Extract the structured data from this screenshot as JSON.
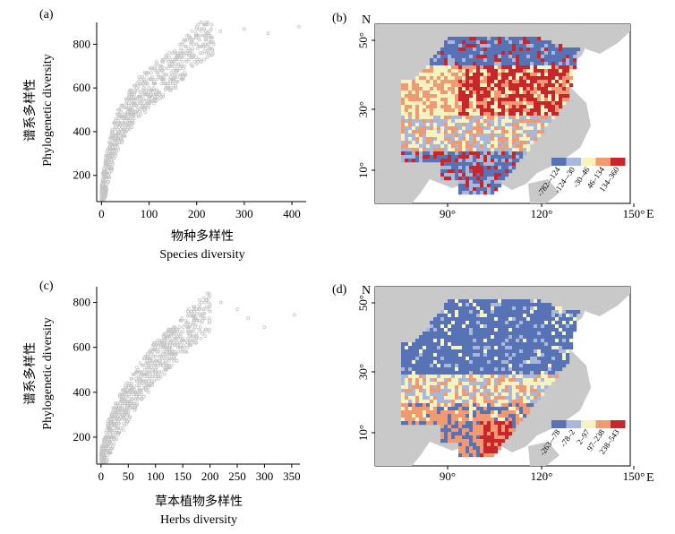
{
  "panels": {
    "a": {
      "label": "(a)",
      "ylabel_cn": "谱系多样性",
      "ylabel_en": "Phylogenetic diversity",
      "xlabel_cn": "物种多样性",
      "xlabel_en": "Species diversity"
    },
    "b": {
      "label": "(b)",
      "north": "N",
      "east": "E",
      "lat_ticks": [
        "50°",
        "30°",
        "10°"
      ],
      "lon_ticks": [
        "90°",
        "120°",
        "150°"
      ],
      "legend": [
        "-782–-124",
        "-124–-30",
        "-30–46",
        "46–134",
        "134–360"
      ],
      "legend_colors": [
        "#5873b5",
        "#a9b7d8",
        "#f6f3c0",
        "#f19a72",
        "#c8262a"
      ]
    },
    "c": {
      "label": "(c)",
      "ylabel_cn": "谱系多样性",
      "ylabel_en": "Phylogenetic diversity",
      "xlabel_cn": "草本植物多样性",
      "xlabel_en": "Herbs diversity"
    },
    "d": {
      "label": "(d)",
      "north": "N",
      "east": "E",
      "lat_ticks": [
        "50°",
        "30°",
        "10°"
      ],
      "lon_ticks": [
        "90°",
        "120°",
        "150°"
      ],
      "legend": [
        "-263–-78",
        "-78–2",
        "2–97",
        "97–238",
        "238–543"
      ],
      "legend_colors": [
        "#5873b5",
        "#a9b7d8",
        "#f6f3c0",
        "#f19a72",
        "#c8262a"
      ]
    }
  },
  "chart_data": [
    {
      "type": "scatter",
      "panel": "a",
      "xlabel": "Species diversity",
      "ylabel": "Phylogenetic diversity",
      "xlim": [
        -10,
        430
      ],
      "ylim": [
        80,
        900
      ],
      "xticks": [
        0,
        100,
        200,
        300,
        400
      ],
      "yticks": [
        200,
        400,
        600,
        800
      ],
      "color": "#c4c4c4",
      "points_sample": [
        [
          2,
          100
        ],
        [
          5,
          150
        ],
        [
          10,
          210
        ],
        [
          15,
          260
        ],
        [
          20,
          300
        ],
        [
          25,
          340
        ],
        [
          30,
          380
        ],
        [
          35,
          410
        ],
        [
          40,
          430
        ],
        [
          50,
          470
        ],
        [
          60,
          500
        ],
        [
          70,
          530
        ],
        [
          80,
          560
        ],
        [
          90,
          580
        ],
        [
          100,
          600
        ],
        [
          110,
          620
        ],
        [
          130,
          650
        ],
        [
          150,
          680
        ],
        [
          170,
          720
        ],
        [
          180,
          760
        ],
        [
          200,
          800
        ],
        [
          220,
          830
        ],
        [
          250,
          860
        ],
        [
          300,
          870
        ],
        [
          350,
          850
        ],
        [
          415,
          880
        ]
      ]
    },
    {
      "type": "scatter",
      "panel": "c",
      "xlabel": "Herbs diversity",
      "ylabel": "Phylogenetic diversity",
      "xlim": [
        -8,
        365
      ],
      "ylim": [
        80,
        870
      ],
      "xticks": [
        0,
        50,
        100,
        150,
        200,
        250,
        300,
        350
      ],
      "yticks": [
        200,
        400,
        600,
        800
      ],
      "color": "#c4c4c4",
      "points_sample": [
        [
          5,
          100
        ],
        [
          10,
          150
        ],
        [
          15,
          200
        ],
        [
          20,
          230
        ],
        [
          25,
          260
        ],
        [
          30,
          290
        ],
        [
          40,
          320
        ],
        [
          50,
          360
        ],
        [
          60,
          400
        ],
        [
          70,
          430
        ],
        [
          80,
          470
        ],
        [
          90,
          500
        ],
        [
          100,
          540
        ],
        [
          120,
          580
        ],
        [
          140,
          620
        ],
        [
          160,
          680
        ],
        [
          180,
          720
        ],
        [
          200,
          760
        ],
        [
          220,
          800
        ],
        [
          250,
          770
        ],
        [
          270,
          730
        ],
        [
          300,
          690
        ],
        [
          355,
          745
        ]
      ]
    },
    {
      "type": "heatmap",
      "panel": "b",
      "description_values": "residual classes",
      "legend": [
        "-782–-124",
        "-124–-30",
        "-30–46",
        "46–134",
        "134–360"
      ]
    },
    {
      "type": "heatmap",
      "panel": "d",
      "legend": [
        "-263–-78",
        "-78–2",
        "2–97",
        "97–238",
        "238–543"
      ]
    }
  ]
}
